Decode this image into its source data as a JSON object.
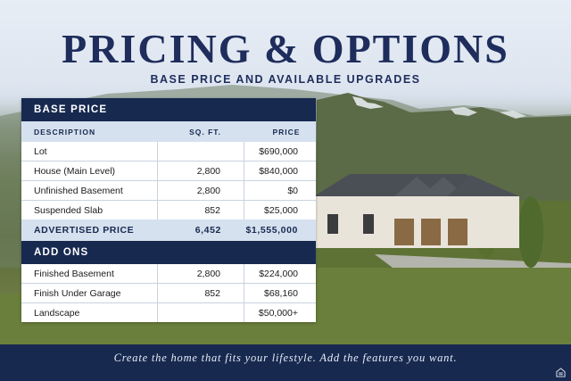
{
  "title": "PRICING & OPTIONS",
  "subtitle": "BASE PRICE AND AVAILABLE UPGRADES",
  "base_price": {
    "heading": "BASE PRICE",
    "columns": [
      "DESCRIPTION",
      "SQ. FT.",
      "PRICE"
    ],
    "rows": [
      {
        "description": "Lot",
        "sqft": "",
        "price": "$690,000"
      },
      {
        "description": "House (Main Level)",
        "sqft": "2,800",
        "price": "$840,000"
      },
      {
        "description": "Unfinished Basement",
        "sqft": "2,800",
        "price": "$0"
      },
      {
        "description": "Suspended Slab",
        "sqft": "852",
        "price": "$25,000"
      }
    ],
    "advertised": {
      "label": "ADVERTISED PRICE",
      "sqft": "6,452",
      "price": "$1,555,000"
    }
  },
  "add_ons": {
    "heading": "ADD ONS",
    "rows": [
      {
        "description": "Finished Basement",
        "sqft": "2,800",
        "price": "$224,000"
      },
      {
        "description": "Finish Under Garage",
        "sqft": "852",
        "price": "$68,160"
      },
      {
        "description": "Landscape",
        "sqft": "",
        "price": "$50,000+"
      }
    ]
  },
  "footer": "Create the home that fits your lifestyle. Add the features you want.",
  "colors": {
    "navy": "#17294f",
    "light_blue": "#d6e1ef",
    "title": "#1e2d5c"
  },
  "icons": [
    "equal-housing-icon"
  ]
}
